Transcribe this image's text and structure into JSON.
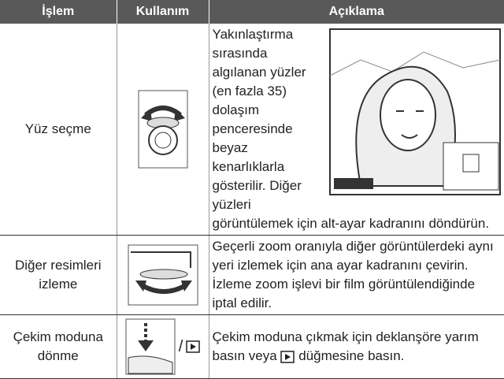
{
  "table": {
    "header": [
      "İşlem",
      "Kullanım",
      "Açıklama"
    ],
    "rows": [
      {
        "operation": "Yüz seçme",
        "description": "Yakınlaştırma sırasında algılanan yüzler (en fazla 35) dolaşım penceresinde beyaz kenarlıklarla gösterilir. Diğer yüzleri görüntülemek için alt-ayar kadranını döndürün."
      },
      {
        "operation": "Diğer resimleri izleme",
        "description": "Geçerli zoom oranıyla diğer görüntülerdeki aynı yeri izlemek için ana ayar kadranını çevirin. İzleme zoom işlevi bir film görüntülendiğinde iptal edilir."
      },
      {
        "operation": "Çekim moduna dönme",
        "usage_separator": "/",
        "description_before": "Çekim moduna çıkmak için deklanşöre yarım basın veya",
        "description_after": "düğmesine basın."
      }
    ]
  }
}
